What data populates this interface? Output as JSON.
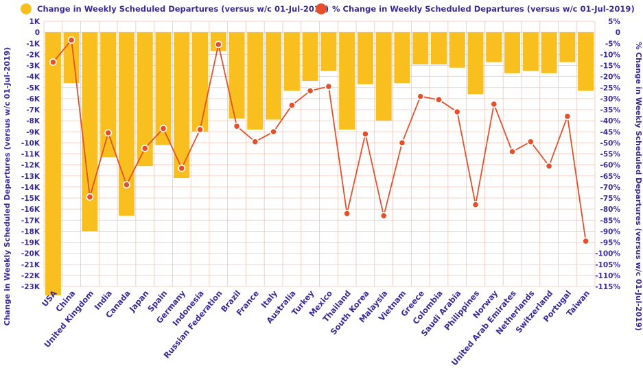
{
  "chart_data": {
    "type": "bar+line",
    "legend": [
      {
        "label": "Change in Weekly Scheduled Departures (versus w/c 01-Jul-2019)",
        "color": "#f9bf1e",
        "shape": "circle"
      },
      {
        "label": "% Change in Weekly Scheduled Departures (versus w/c 01-Jul-2019)",
        "color": "#e5502b",
        "shape": "circle"
      }
    ],
    "ylabel_left": "Change in Weekly Scheduled Departures (versus w/c 01-Jul-2019)",
    "ylabel_right": "% Change in Weekly Scheduled Departures (versus w/c 01-Jul-2019)",
    "ylim_left": [
      -23000,
      1000
    ],
    "ylim_right": [
      -115,
      5
    ],
    "yticks_left": [
      "1K",
      "0",
      "-1K",
      "-2K",
      "-3K",
      "-4K",
      "-5K",
      "-6K",
      "-7K",
      "-8K",
      "-9K",
      "-10K",
      "-11K",
      "-12K",
      "-13K",
      "-14K",
      "-15K",
      "-16K",
      "-17K",
      "-18K",
      "-19K",
      "-20K",
      "-21K",
      "-22K",
      "-23K"
    ],
    "yticks_right": [
      "5%",
      "0",
      "-5%",
      "-10%",
      "-15%",
      "-20%",
      "-25%",
      "-30%",
      "-35%",
      "-40%",
      "-45%",
      "-50%",
      "-55%",
      "-60%",
      "-65%",
      "-70%",
      "-75%",
      "-80%",
      "-85%",
      "-90%",
      "-95%",
      "-100%",
      "-105%",
      "-110%",
      "-115%"
    ],
    "categories": [
      "USA",
      "China",
      "United Kingdom",
      "India",
      "Canada",
      "Japan",
      "Spain",
      "Germany",
      "Indonesia",
      "Russian Federation",
      "Brazil",
      "France",
      "Italy",
      "Australia",
      "Turkey",
      "Mexico",
      "Thailand",
      "South Korea",
      "Malaysia",
      "Vietnam",
      "Greece",
      "Colombia",
      "Saudi Arabia",
      "Philippines",
      "Norway",
      "United Arab Emirates",
      "Netherlands",
      "Switzerland",
      "Portugal",
      "Taiwan"
    ],
    "series": [
      {
        "name": "Change in Weekly Scheduled Departures (versus w/c 01-Jul-2019)",
        "type": "bar",
        "color": "#f9bf1e",
        "values": [
          -23800,
          -4600,
          -18000,
          -11300,
          -16600,
          -12100,
          -10200,
          -13200,
          -9000,
          -1700,
          -7800,
          -8800,
          -7900,
          -5300,
          -4400,
          -3500,
          -8800,
          -4700,
          -8000,
          -4600,
          -2900,
          -2900,
          -3200,
          -5600,
          -2700,
          -3700,
          -3500,
          -3700,
          -2700,
          -5300
        ]
      },
      {
        "name": "% Change in Weekly Scheduled Departures (versus w/c 01-Jul-2019)",
        "type": "line",
        "color": "#e5502b",
        "values": [
          -13.5,
          -3.5,
          -74.5,
          -45.5,
          -69.0,
          -52.5,
          -43.5,
          -61.5,
          -44.0,
          -5.5,
          -42.5,
          -49.5,
          -45.0,
          -33.0,
          -26.5,
          -24.5,
          -82.0,
          -46.0,
          -83.0,
          -50.0,
          -29.0,
          -30.5,
          -36.0,
          -78.0,
          -32.5,
          -54.0,
          -49.5,
          -60.5,
          -38.0,
          -94.5
        ]
      }
    ]
  }
}
